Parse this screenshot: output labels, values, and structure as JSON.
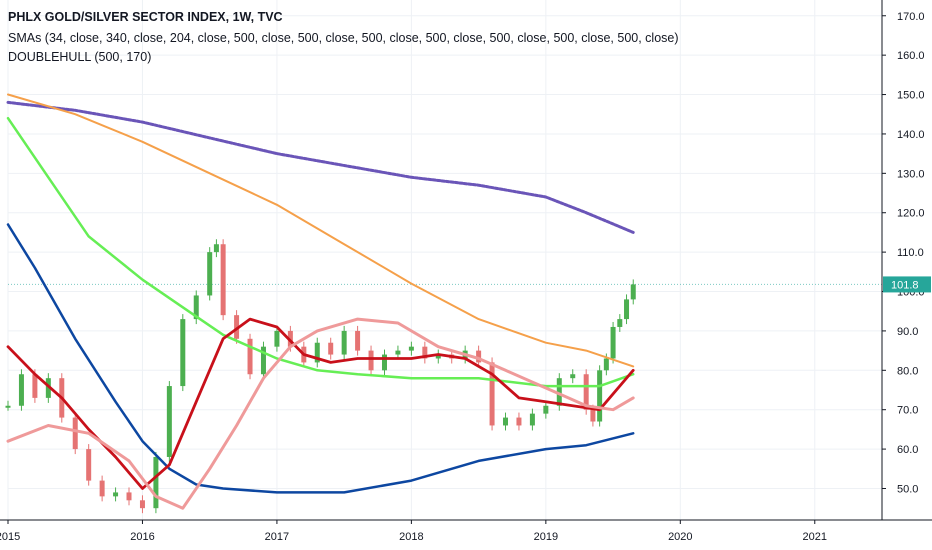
{
  "header": {
    "title": "PHLX GOLD/SILVER SECTOR INDEX, 1W, TVC",
    "indicator_1": "SMAs (34, close, 340, close, 204, close, 500, close, 500, close, 500, close, 500, close, 500, close, 500, close, 500, close)",
    "indicator_2": "DOUBLEHULL (500, 170)"
  },
  "colors": {
    "up_candle": "#4caf50",
    "down_candle": "#e57373",
    "purple_ma": "#6a55b8",
    "orange_ma": "#f5a04a",
    "green_ma": "#66ee55",
    "blue_ma": "#0d47a1",
    "red_hull": "#c8101a",
    "pink_hull": "#ef9a9a",
    "last_price_bg": "#26a69a",
    "grid": "#eef1f5",
    "axis": "#131722"
  },
  "chart_data": {
    "type": "line",
    "title": "PHLX GOLD/SILVER SECTOR INDEX, 1W, TVC",
    "xlabel": "",
    "ylabel": "",
    "ylim": [
      42,
      174
    ],
    "xlim": [
      2015.0,
      2021.5
    ],
    "x_ticks": [
      2015,
      2016,
      2017,
      2018,
      2019,
      2020,
      2021
    ],
    "x_tick_labels": [
      "2015",
      "2016",
      "2017",
      "2018",
      "2019",
      "2020",
      "2021"
    ],
    "y_ticks": [
      50,
      60,
      70,
      80,
      90,
      100,
      110,
      120,
      130,
      140,
      150,
      160,
      170
    ],
    "y_tick_labels": [
      "50.0",
      "60.0",
      "70.0",
      "80.0",
      "90.0",
      "100.0",
      "110.0",
      "120.0",
      "130.0",
      "140.0",
      "150.0",
      "160.0",
      "170.0"
    ],
    "last_price": 101.8,
    "last_price_label": "101.8",
    "grid": true,
    "candles": {
      "x": [
        2015.0,
        2015.1,
        2015.2,
        2015.3,
        2015.4,
        2015.5,
        2015.6,
        2015.7,
        2015.8,
        2015.9,
        2016.0,
        2016.1,
        2016.2,
        2016.3,
        2016.4,
        2016.5,
        2016.55,
        2016.6,
        2016.7,
        2016.8,
        2016.9,
        2017.0,
        2017.1,
        2017.2,
        2017.3,
        2017.4,
        2017.5,
        2017.6,
        2017.7,
        2017.8,
        2017.9,
        2018.0,
        2018.1,
        2018.2,
        2018.3,
        2018.4,
        2018.5,
        2018.6,
        2018.7,
        2018.8,
        2018.9,
        2019.0,
        2019.1,
        2019.2,
        2019.3,
        2019.35,
        2019.4,
        2019.45,
        2019.5,
        2019.55,
        2019.6,
        2019.65
      ],
      "values": [
        71,
        79,
        73,
        78,
        68,
        60,
        52,
        48,
        49,
        47,
        45,
        58,
        76,
        93,
        99,
        110,
        112,
        94,
        88,
        79,
        86,
        90,
        86,
        82,
        87,
        84,
        90,
        85,
        80,
        84,
        85,
        86,
        83,
        84,
        83,
        85,
        82,
        66,
        68,
        66,
        69,
        71,
        78,
        79,
        70,
        67,
        80,
        83,
        91,
        93,
        98,
        101.8
      ]
    },
    "series": [
      {
        "color": "#6a55b8",
        "x": [
          2015.0,
          2015.5,
          2016.0,
          2016.5,
          2017.0,
          2017.5,
          2018.0,
          2018.5,
          2019.0,
          2019.3,
          2019.65
        ],
        "values": [
          148,
          146,
          143,
          139,
          135,
          132,
          129,
          127,
          124,
          120,
          115
        ]
      },
      {
        "color": "#f5a04a",
        "x": [
          2015.0,
          2015.5,
          2016.0,
          2016.5,
          2017.0,
          2017.5,
          2018.0,
          2018.5,
          2019.0,
          2019.3,
          2019.65
        ],
        "values": [
          150,
          145,
          138,
          130,
          122,
          112,
          102,
          93,
          87,
          85,
          81
        ]
      },
      {
        "color": "#66ee55",
        "x": [
          2015.0,
          2015.3,
          2015.6,
          2016.0,
          2016.3,
          2016.6,
          2017.0,
          2017.3,
          2017.6,
          2018.0,
          2018.5,
          2019.0,
          2019.4,
          2019.65
        ],
        "values": [
          144,
          129,
          114,
          103,
          96,
          89,
          83,
          80,
          79,
          78,
          78,
          76,
          76,
          79
        ]
      },
      {
        "color": "#0d47a1",
        "x": [
          2015.0,
          2015.2,
          2015.5,
          2015.8,
          2016.0,
          2016.2,
          2016.4,
          2016.6,
          2017.0,
          2017.5,
          2018.0,
          2018.5,
          2019.0,
          2019.3,
          2019.65
        ],
        "values": [
          117,
          106,
          88,
          72,
          62,
          55,
          51,
          50,
          49,
          49,
          52,
          57,
          60,
          61,
          64
        ]
      },
      {
        "color": "#c8101a",
        "x": [
          2015.0,
          2015.2,
          2015.4,
          2015.6,
          2015.8,
          2016.0,
          2016.2,
          2016.4,
          2016.6,
          2016.8,
          2017.0,
          2017.2,
          2017.4,
          2017.6,
          2017.8,
          2018.0,
          2018.2,
          2018.4,
          2018.6,
          2018.8,
          2019.0,
          2019.2,
          2019.4,
          2019.65
        ],
        "values": [
          86,
          79,
          73,
          65,
          58,
          50,
          56,
          72,
          88,
          93,
          91,
          84,
          82,
          83,
          83,
          83,
          84,
          83,
          79,
          73,
          72,
          71,
          70,
          80
        ]
      },
      {
        "color": "#ef9a9a",
        "x": [
          2015.0,
          2015.3,
          2015.6,
          2015.9,
          2016.1,
          2016.3,
          2016.5,
          2016.7,
          2016.9,
          2017.1,
          2017.3,
          2017.6,
          2017.9,
          2018.2,
          2018.5,
          2018.7,
          2018.9,
          2019.1,
          2019.3,
          2019.5,
          2019.65
        ],
        "values": [
          62,
          66,
          64,
          57,
          48,
          45,
          55,
          66,
          78,
          86,
          90,
          93,
          92,
          86,
          83,
          80,
          77,
          74,
          71,
          70,
          73
        ]
      }
    ]
  }
}
